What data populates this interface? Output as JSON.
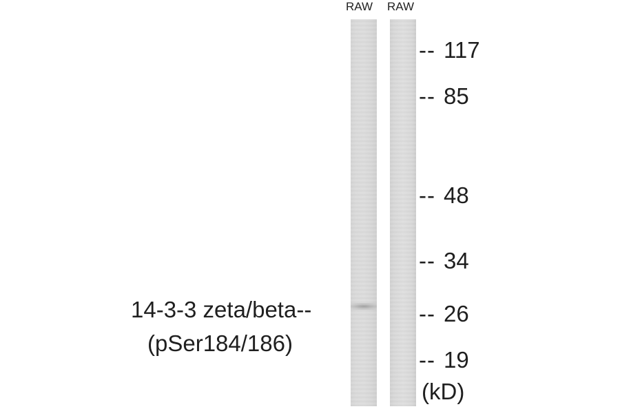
{
  "lanes": [
    {
      "label": "RAW"
    },
    {
      "label": "RAW"
    }
  ],
  "markers": [
    {
      "dash": "--",
      "value": "117"
    },
    {
      "dash": "--",
      "value": "85"
    },
    {
      "dash": "--",
      "value": "48"
    },
    {
      "dash": "--",
      "value": "34"
    },
    {
      "dash": "--",
      "value": "26"
    },
    {
      "dash": "--",
      "value": "19"
    }
  ],
  "unit": "(kD)",
  "protein": {
    "line1": "14-3-3 zeta/beta--",
    "line2": "(pSer184/186)"
  }
}
